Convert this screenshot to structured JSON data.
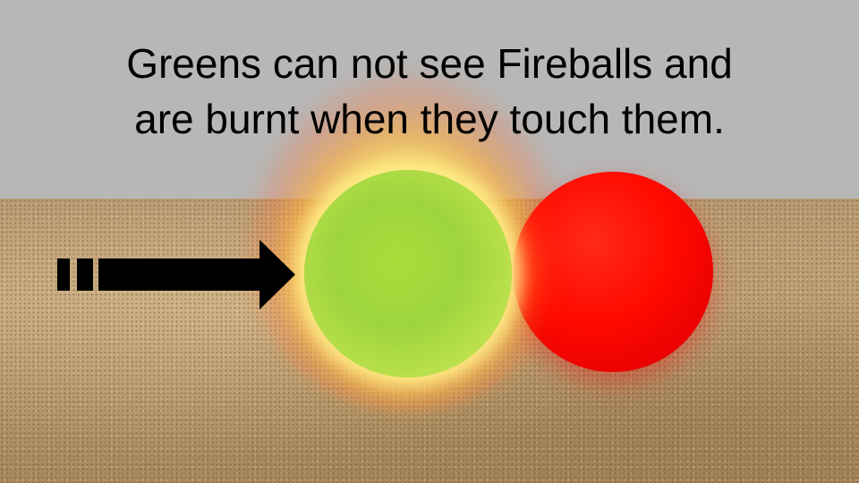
{
  "caption": {
    "line1": "Greens can not see Fireballs and",
    "line2": "are burnt when they touch them."
  },
  "colors": {
    "sky": "#b7b7b7",
    "sand": "#c2a47a",
    "green_ball": "#9ed43e",
    "red_ball": "#ff0a00",
    "glow": "#fff4a0",
    "arrow": "#000000"
  },
  "icons": {
    "arrow": "right-arrow-icon",
    "green_ball": "green-sphere",
    "red_ball": "red-fireball-sphere"
  }
}
